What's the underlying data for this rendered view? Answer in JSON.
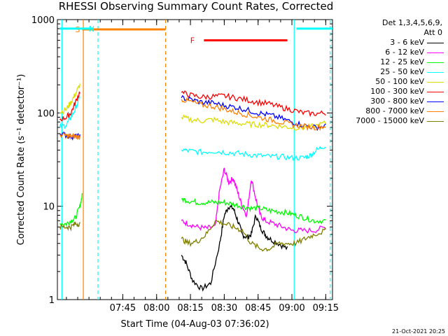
{
  "chart_data": {
    "type": "line",
    "title": "RHESSI Observing Summary Count Rates, Corrected",
    "xlabel": "Start Time (04-Aug-03 07:36:02)",
    "ylabel": "Corrected Count Rate (s⁻¹ detector⁻¹)",
    "yscale": "log",
    "ylim": [
      1,
      1000
    ],
    "y_ticks": [
      {
        "v": 1,
        "label": "1"
      },
      {
        "v": 10,
        "label": "10"
      },
      {
        "v": 100,
        "label": "100"
      },
      {
        "v": 1000,
        "label": "1000"
      }
    ],
    "xlim_min": [
      436,
      558
    ],
    "x_ticks": [
      {
        "t": 465,
        "label": "07:45"
      },
      {
        "t": 480,
        "label": "08:00"
      },
      {
        "t": 495,
        "label": "08:15"
      },
      {
        "t": 510,
        "label": "08:30"
      },
      {
        "t": 525,
        "label": "08:45"
      },
      {
        "t": 540,
        "label": "09:00"
      },
      {
        "t": 555,
        "label": "09:15"
      }
    ],
    "legend": {
      "header_1": "Det 1,3,4,5,6,9,",
      "header_2": "Att 0",
      "placement": "right"
    },
    "series": [
      {
        "name": "3 - 6 keV",
        "color": "#000000",
        "points": [
          [
            491,
            3
          ],
          [
            493,
            2.5
          ],
          [
            496,
            1.6
          ],
          [
            500,
            1.3
          ],
          [
            504,
            1.5
          ],
          [
            508,
            4
          ],
          [
            510,
            8
          ],
          [
            512,
            10
          ],
          [
            514,
            9.5
          ],
          [
            516,
            7
          ],
          [
            518,
            5
          ],
          [
            520,
            4.6
          ],
          [
            522,
            5
          ],
          [
            524,
            8
          ],
          [
            526,
            6
          ],
          [
            528,
            5
          ],
          [
            530,
            4.5
          ],
          [
            534,
            4
          ],
          [
            538,
            3.5
          ]
        ]
      },
      {
        "name": "6 - 12 keV",
        "color": "#ff00ff",
        "points": [
          [
            491,
            7
          ],
          [
            494,
            6.5
          ],
          [
            498,
            6
          ],
          [
            502,
            5.8
          ],
          [
            506,
            6
          ],
          [
            508,
            15
          ],
          [
            510,
            25
          ],
          [
            512,
            18
          ],
          [
            514,
            20
          ],
          [
            516,
            14
          ],
          [
            518,
            10
          ],
          [
            520,
            8
          ],
          [
            522,
            20
          ],
          [
            524,
            12
          ],
          [
            526,
            8
          ],
          [
            528,
            7
          ],
          [
            532,
            6.5
          ],
          [
            536,
            6
          ],
          [
            540,
            5.5
          ],
          [
            544,
            5.5
          ],
          [
            550,
            5.5
          ],
          [
            555,
            6
          ]
        ]
      },
      {
        "name": "12 - 25 keV",
        "color": "#00ff00",
        "points": [
          [
            437,
            6.5
          ],
          [
            440,
            6.5
          ],
          [
            442,
            7
          ],
          [
            444,
            7.5
          ],
          [
            446,
            10
          ],
          [
            447,
            13
          ],
          [
            491,
            12
          ],
          [
            494,
            11.5
          ],
          [
            498,
            11
          ],
          [
            502,
            11
          ],
          [
            506,
            11
          ],
          [
            510,
            11
          ],
          [
            514,
            10.5
          ],
          [
            518,
            10
          ],
          [
            522,
            9.5
          ],
          [
            526,
            9.5
          ],
          [
            530,
            9
          ],
          [
            534,
            8.8
          ],
          [
            538,
            8.5
          ],
          [
            542,
            8
          ],
          [
            546,
            7.5
          ],
          [
            550,
            7
          ],
          [
            555,
            7
          ]
        ]
      },
      {
        "name": "25 - 50 keV",
        "color": "#00ffff",
        "points": [
          [
            437,
            70
          ],
          [
            440,
            75
          ],
          [
            442,
            90
          ],
          [
            444,
            110
          ],
          [
            446,
            150
          ],
          [
            491,
            40
          ],
          [
            495,
            39
          ],
          [
            500,
            38
          ],
          [
            505,
            39
          ],
          [
            510,
            38
          ],
          [
            515,
            37
          ],
          [
            520,
            36
          ],
          [
            525,
            35
          ],
          [
            530,
            34
          ],
          [
            535,
            34
          ],
          [
            540,
            33
          ],
          [
            545,
            33
          ],
          [
            548,
            35
          ],
          [
            551,
            40
          ],
          [
            555,
            45
          ]
        ]
      },
      {
        "name": "50 - 100 keV",
        "color": "#dddd00",
        "points": [
          [
            437,
            100
          ],
          [
            440,
            110
          ],
          [
            442,
            130
          ],
          [
            444,
            160
          ],
          [
            446,
            200
          ],
          [
            491,
            90
          ],
          [
            495,
            85
          ],
          [
            500,
            82
          ],
          [
            505,
            85
          ],
          [
            510,
            80
          ],
          [
            515,
            78
          ],
          [
            520,
            76
          ],
          [
            525,
            75
          ],
          [
            530,
            74
          ],
          [
            535,
            72
          ],
          [
            540,
            70
          ],
          [
            545,
            69
          ],
          [
            550,
            72
          ],
          [
            555,
            78
          ]
        ]
      },
      {
        "name": "100 - 300 keV",
        "color": "#ff0000",
        "points": [
          [
            437,
            85
          ],
          [
            440,
            90
          ],
          [
            442,
            100
          ],
          [
            444,
            130
          ],
          [
            446,
            170
          ],
          [
            491,
            165
          ],
          [
            495,
            155
          ],
          [
            500,
            148
          ],
          [
            505,
            150
          ],
          [
            510,
            152
          ],
          [
            515,
            145
          ],
          [
            520,
            138
          ],
          [
            525,
            130
          ],
          [
            530,
            125
          ],
          [
            535,
            115
          ],
          [
            540,
            108
          ],
          [
            545,
            100
          ],
          [
            550,
            98
          ],
          [
            555,
            100
          ]
        ]
      },
      {
        "name": "300 - 800 keV",
        "color": "#0000ff",
        "points": [
          [
            437,
            60
          ],
          [
            440,
            58
          ],
          [
            442,
            56
          ],
          [
            444,
            56
          ],
          [
            446,
            56
          ],
          [
            491,
            145
          ],
          [
            495,
            140
          ],
          [
            500,
            130
          ],
          [
            505,
            128
          ],
          [
            510,
            120
          ],
          [
            515,
            115
          ],
          [
            520,
            108
          ],
          [
            525,
            100
          ],
          [
            530,
            95
          ],
          [
            535,
            88
          ],
          [
            540,
            80
          ],
          [
            545,
            74
          ],
          [
            550,
            70
          ],
          [
            555,
            72
          ]
        ]
      },
      {
        "name": "800 - 7000 keV",
        "color": "#ff8000",
        "points": [
          [
            437,
            58
          ],
          [
            440,
            57
          ],
          [
            442,
            56
          ],
          [
            444,
            56
          ],
          [
            446,
            55
          ],
          [
            491,
            140
          ],
          [
            495,
            132
          ],
          [
            500,
            122
          ],
          [
            505,
            118
          ],
          [
            510,
            110
          ],
          [
            515,
            102
          ],
          [
            520,
            96
          ],
          [
            525,
            90
          ],
          [
            530,
            85
          ],
          [
            535,
            80
          ],
          [
            540,
            75
          ],
          [
            545,
            72
          ],
          [
            550,
            70
          ],
          [
            555,
            72
          ]
        ]
      },
      {
        "name": "7000 - 15000 keV",
        "color": "#808000",
        "points": [
          [
            437,
            6
          ],
          [
            440,
            6
          ],
          [
            442,
            6
          ],
          [
            444,
            6.5
          ],
          [
            446,
            6.5
          ],
          [
            491,
            4.5
          ],
          [
            494,
            4
          ],
          [
            498,
            4.2
          ],
          [
            502,
            5
          ],
          [
            506,
            7
          ],
          [
            510,
            6.5
          ],
          [
            514,
            6
          ],
          [
            518,
            5.5
          ],
          [
            522,
            4
          ],
          [
            526,
            3.5
          ],
          [
            530,
            3.5
          ],
          [
            534,
            4
          ],
          [
            538,
            4
          ],
          [
            542,
            4
          ],
          [
            546,
            4.5
          ],
          [
            550,
            5
          ],
          [
            555,
            5.5
          ]
        ]
      }
    ],
    "annotations": [
      {
        "label": "S",
        "color": "#ff8000",
        "t0": 447,
        "t1": 484,
        "at": 1000,
        "label_t": 447,
        "style": "bar"
      },
      {
        "label": "N",
        "color": "#00ffff",
        "t0": 437,
        "t1": 452,
        "at": 800,
        "label_t": 453,
        "style": "bar"
      },
      {
        "label": "",
        "color": "#00ffff",
        "t0": 542,
        "t1": 558,
        "at": 800,
        "label_t": 542,
        "style": "bar"
      },
      {
        "label": "F",
        "color": "#ff0000",
        "t0": 501,
        "t1": 538,
        "at": 600,
        "label_t": 498,
        "style": "bar"
      }
    ],
    "markers": [
      {
        "t": 438,
        "color": "#00ffff",
        "dashed": false
      },
      {
        "t": 454,
        "color": "#00ffff",
        "dashed": true
      },
      {
        "t": 447.5,
        "color": "#ff8000",
        "dashed": false
      },
      {
        "t": 484,
        "color": "#ff8000",
        "dashed": true
      },
      {
        "t": 541,
        "color": "#00ffff",
        "dashed": false
      },
      {
        "t": 557,
        "color": "#00ffff",
        "dashed": true
      }
    ],
    "grid": false
  },
  "footer": {
    "timestamp": "21-Oct-2021 20:25"
  }
}
